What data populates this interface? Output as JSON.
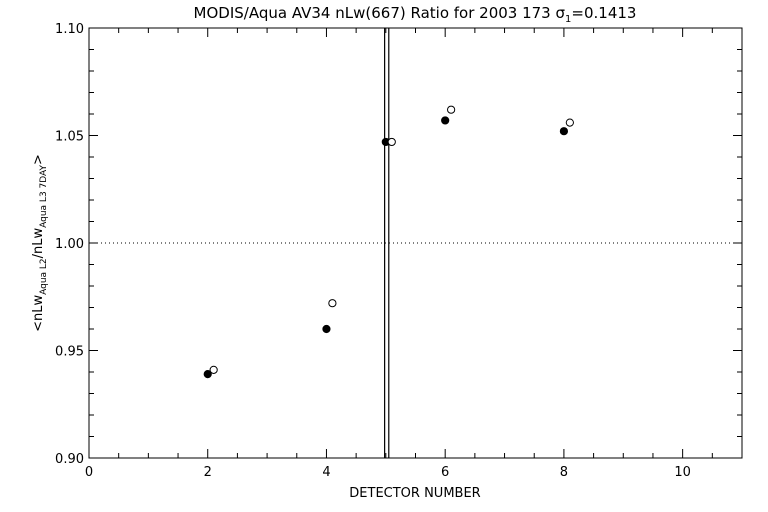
{
  "chart_data": {
    "type": "scatter",
    "title_main": "MODIS/Aqua AV34 nLw(667) Ratio for 2003 173 ",
    "title_sigma": "σ",
    "title_sigma_sub": "1",
    "title_value": "=0.1413",
    "xlabel": "DETECTOR NUMBER",
    "ylabel_parts": {
      "open": "<nLw",
      "sub1": "Aqua L2",
      "mid": "/nLw",
      "sub2": "Aqua L3 7DAY",
      "close": ">"
    },
    "xlim": [
      0,
      11
    ],
    "ylim": [
      0.9,
      1.1
    ],
    "x_ticks": [
      0,
      2,
      4,
      6,
      8,
      10
    ],
    "x_tick_labels": [
      "0",
      "2",
      "4",
      "6",
      "8",
      "10"
    ],
    "y_ticks": [
      0.9,
      0.95,
      1.0,
      1.05,
      1.1
    ],
    "y_tick_labels": [
      "0.90",
      "0.95",
      "1.00",
      "1.05",
      "1.10"
    ],
    "reference_line_y": 1.0,
    "vertical_lines_x": [
      4.98,
      5.05
    ],
    "series": [
      {
        "marker": "filled-circle",
        "x": [
          2,
          4,
          5,
          6,
          8
        ],
        "y": [
          0.939,
          0.96,
          1.047,
          1.057,
          1.052
        ]
      },
      {
        "marker": "open-circle",
        "x": [
          2.1,
          4.1,
          5.1,
          6.1,
          8.1
        ],
        "y": [
          0.941,
          0.972,
          1.047,
          1.062,
          1.056
        ]
      }
    ],
    "grid": false,
    "legend": "none"
  }
}
